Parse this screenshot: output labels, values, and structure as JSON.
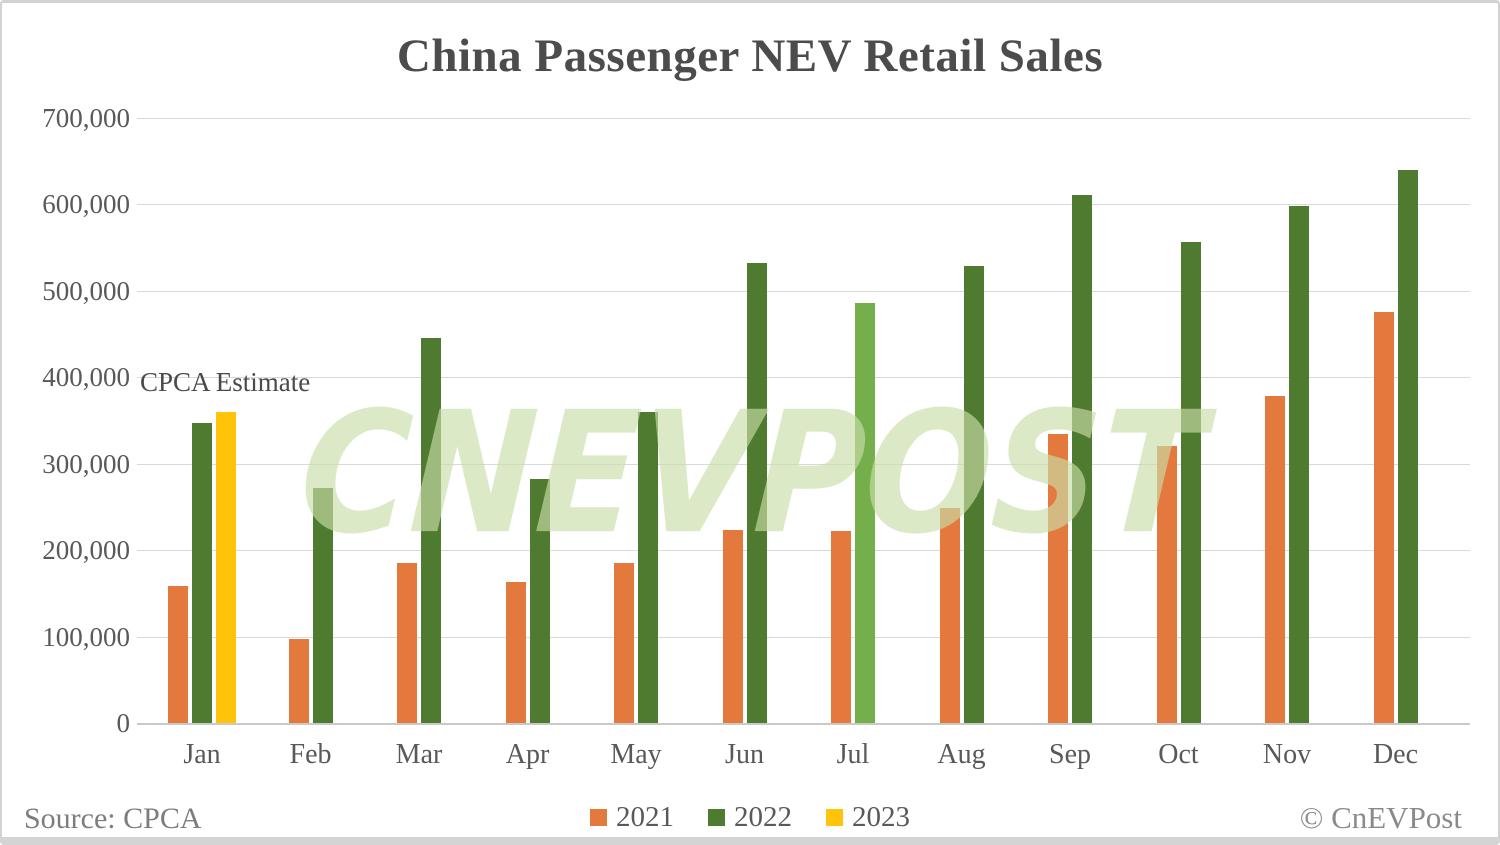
{
  "title": "China Passenger NEV Retail Sales",
  "annotation_label": "CPCA Estimate",
  "watermark_text": "CNEVPOST",
  "footer": {
    "source": "Source: CPCA",
    "copyright": "© CnEVPost"
  },
  "colors": {
    "series_2021": "#E3793C",
    "series_2022": "#4E7B2F",
    "series_2022_highlight": "#74AF4C",
    "series_2023": "#FFC40A",
    "gridline": "#d9d9d9",
    "axis_text": "#595959",
    "title_text": "#4c4c4c",
    "watermark": "#C9DDA8"
  },
  "chart_data": {
    "type": "bar",
    "title": "China Passenger NEV Retail Sales",
    "categories": [
      "Jan",
      "Feb",
      "Mar",
      "Apr",
      "May",
      "Jun",
      "Jul",
      "Aug",
      "Sep",
      "Oct",
      "Nov",
      "Dec"
    ],
    "series": [
      {
        "name": "2021",
        "color": "#E3793C",
        "values": [
          158000,
          97000,
          185000,
          163000,
          185000,
          223000,
          222000,
          249000,
          334000,
          321000,
          378000,
          475000
        ]
      },
      {
        "name": "2022",
        "color": "#4E7B2F",
        "highlight_index": 6,
        "highlight_color": "#74AF4C",
        "values": [
          347000,
          272000,
          445000,
          282000,
          360000,
          532000,
          486000,
          529000,
          611000,
          556000,
          598000,
          640000
        ]
      },
      {
        "name": "2023",
        "color": "#FFC40A",
        "values": [
          360000,
          null,
          null,
          null,
          null,
          null,
          null,
          null,
          null,
          null,
          null,
          null
        ],
        "note": "Jan 2023 is a CPCA estimate"
      }
    ],
    "ylim": [
      0,
      700000
    ],
    "ytick_step": 100000,
    "ytick_labels": [
      "0",
      "100,000",
      "200,000",
      "300,000",
      "400,000",
      "500,000",
      "600,000",
      "700,000"
    ],
    "grid": true,
    "legend_position": "bottom",
    "annotation": {
      "text": "CPCA Estimate",
      "target": "Jan 2023 bar"
    }
  }
}
